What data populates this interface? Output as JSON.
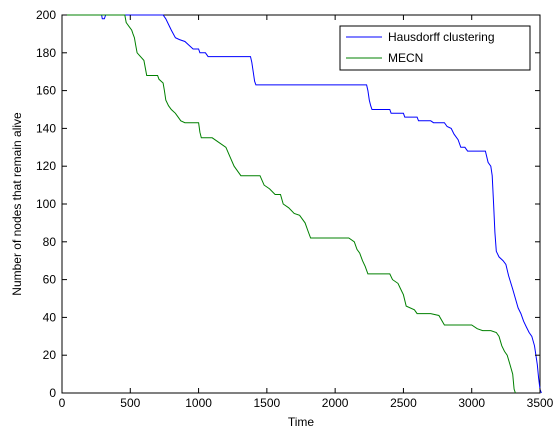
{
  "chart_data": {
    "type": "line",
    "title": "",
    "xlabel": "Time",
    "ylabel": "Number of nodes that remain alive",
    "xlim": [
      0,
      3500
    ],
    "ylim": [
      0,
      200
    ],
    "xticks": [
      0,
      500,
      1000,
      1500,
      2000,
      2500,
      3000,
      3500
    ],
    "yticks": [
      0,
      20,
      40,
      60,
      80,
      100,
      120,
      140,
      160,
      180,
      200
    ],
    "grid": false,
    "legend_position": "top-right",
    "series": [
      {
        "name": "Hausdorff clustering",
        "color": "#0000ff",
        "points": [
          [
            0,
            200
          ],
          [
            290,
            200
          ],
          [
            295,
            198
          ],
          [
            310,
            198
          ],
          [
            320,
            200
          ],
          [
            740,
            200
          ],
          [
            760,
            198
          ],
          [
            780,
            195
          ],
          [
            800,
            192
          ],
          [
            830,
            188
          ],
          [
            860,
            187
          ],
          [
            900,
            186
          ],
          [
            930,
            184
          ],
          [
            960,
            182
          ],
          [
            1000,
            182
          ],
          [
            1010,
            180
          ],
          [
            1050,
            180
          ],
          [
            1070,
            178
          ],
          [
            1100,
            178
          ],
          [
            1380,
            178
          ],
          [
            1390,
            175
          ],
          [
            1400,
            170
          ],
          [
            1410,
            165
          ],
          [
            1420,
            163
          ],
          [
            2230,
            163
          ],
          [
            2240,
            160
          ],
          [
            2250,
            155
          ],
          [
            2260,
            152
          ],
          [
            2270,
            150
          ],
          [
            2400,
            150
          ],
          [
            2410,
            148
          ],
          [
            2500,
            148
          ],
          [
            2510,
            146
          ],
          [
            2600,
            146
          ],
          [
            2610,
            144
          ],
          [
            2700,
            144
          ],
          [
            2720,
            143
          ],
          [
            2800,
            143
          ],
          [
            2820,
            141
          ],
          [
            2850,
            140
          ],
          [
            2870,
            137
          ],
          [
            2900,
            134
          ],
          [
            2920,
            130
          ],
          [
            2950,
            130
          ],
          [
            2970,
            128
          ],
          [
            3100,
            128
          ],
          [
            3120,
            122
          ],
          [
            3140,
            120
          ],
          [
            3150,
            115
          ],
          [
            3160,
            100
          ],
          [
            3170,
            85
          ],
          [
            3180,
            75
          ],
          [
            3200,
            72
          ],
          [
            3230,
            70
          ],
          [
            3250,
            68
          ],
          [
            3270,
            62
          ],
          [
            3300,
            55
          ],
          [
            3320,
            50
          ],
          [
            3340,
            45
          ],
          [
            3360,
            42
          ],
          [
            3380,
            38
          ],
          [
            3400,
            35
          ],
          [
            3420,
            32
          ],
          [
            3440,
            30
          ],
          [
            3460,
            25
          ],
          [
            3470,
            20
          ],
          [
            3480,
            15
          ],
          [
            3490,
            8
          ],
          [
            3500,
            2
          ],
          [
            3510,
            0
          ]
        ]
      },
      {
        "name": "MECN",
        "color": "#008000",
        "points": [
          [
            0,
            200
          ],
          [
            460,
            200
          ],
          [
            470,
            196
          ],
          [
            490,
            194
          ],
          [
            510,
            192
          ],
          [
            520,
            190
          ],
          [
            530,
            188
          ],
          [
            540,
            184
          ],
          [
            550,
            180
          ],
          [
            600,
            176
          ],
          [
            610,
            172
          ],
          [
            620,
            168
          ],
          [
            700,
            168
          ],
          [
            710,
            166
          ],
          [
            740,
            164
          ],
          [
            750,
            160
          ],
          [
            760,
            155
          ],
          [
            780,
            152
          ],
          [
            800,
            150
          ],
          [
            830,
            148
          ],
          [
            850,
            146
          ],
          [
            870,
            144
          ],
          [
            900,
            143
          ],
          [
            1000,
            143
          ],
          [
            1010,
            138
          ],
          [
            1020,
            135
          ],
          [
            1100,
            135
          ],
          [
            1200,
            130
          ],
          [
            1230,
            125
          ],
          [
            1260,
            120
          ],
          [
            1290,
            117
          ],
          [
            1310,
            115
          ],
          [
            1330,
            115
          ],
          [
            1450,
            115
          ],
          [
            1480,
            110
          ],
          [
            1520,
            108
          ],
          [
            1560,
            105
          ],
          [
            1600,
            105
          ],
          [
            1620,
            100
          ],
          [
            1660,
            98
          ],
          [
            1700,
            95
          ],
          [
            1740,
            94
          ],
          [
            1780,
            90
          ],
          [
            1800,
            86
          ],
          [
            1820,
            82
          ],
          [
            1900,
            82
          ],
          [
            2080,
            82
          ],
          [
            2100,
            82
          ],
          [
            2140,
            80
          ],
          [
            2160,
            76
          ],
          [
            2180,
            74
          ],
          [
            2200,
            70
          ],
          [
            2220,
            67
          ],
          [
            2240,
            63
          ],
          [
            2400,
            63
          ],
          [
            2420,
            60
          ],
          [
            2460,
            58
          ],
          [
            2480,
            55
          ],
          [
            2500,
            52
          ],
          [
            2520,
            46
          ],
          [
            2580,
            44
          ],
          [
            2600,
            42
          ],
          [
            2700,
            42
          ],
          [
            2760,
            41
          ],
          [
            2800,
            36
          ],
          [
            3000,
            36
          ],
          [
            3040,
            34
          ],
          [
            3080,
            33
          ],
          [
            3140,
            33
          ],
          [
            3180,
            32
          ],
          [
            3200,
            30
          ],
          [
            3220,
            25
          ],
          [
            3240,
            22
          ],
          [
            3260,
            20
          ],
          [
            3280,
            15
          ],
          [
            3300,
            10
          ],
          [
            3310,
            2
          ],
          [
            3320,
            0
          ]
        ]
      }
    ]
  }
}
